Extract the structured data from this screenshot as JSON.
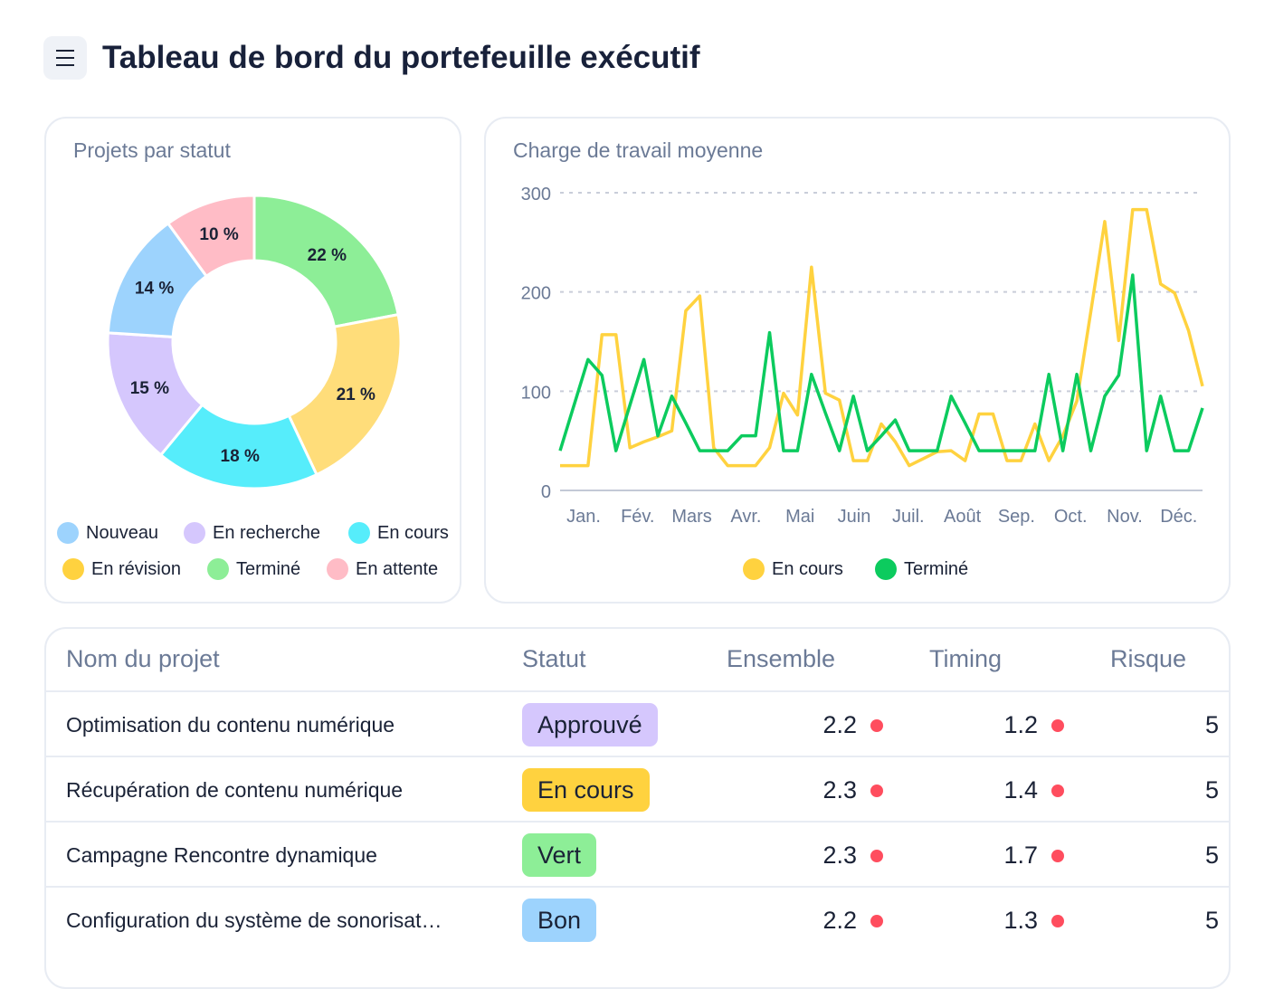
{
  "header": {
    "title": "Tableau de bord du portefeuille exécutif",
    "menu_icon": "hamburger-icon"
  },
  "status_card": {
    "title": "Projets par statut",
    "chart_data": {
      "type": "pie",
      "donut": true,
      "slices": [
        {
          "label": "Terminé",
          "value": 22,
          "display": "22 %",
          "color": "#8DEE97"
        },
        {
          "label": "En révision",
          "value": 21,
          "display": "21 %",
          "color": "#FFDD7A"
        },
        {
          "label": "En cours",
          "value": 18,
          "display": "18 %",
          "color": "#56EDFB"
        },
        {
          "label": "En recherche",
          "value": 15,
          "display": "15 %",
          "color": "#D5C7FD"
        },
        {
          "label": "Nouveau",
          "value": 14,
          "display": "14 %",
          "color": "#9DD3FD"
        },
        {
          "label": "En attente",
          "value": 10,
          "display": "10 %",
          "color": "#FFBCC6"
        }
      ]
    },
    "legend": [
      {
        "label": "Nouveau",
        "color": "#9DD3FD"
      },
      {
        "label": "En recherche",
        "color": "#D5C7FD"
      },
      {
        "label": "En cours",
        "color": "#56EDFB"
      },
      {
        "label": "En révision",
        "color": "#FFD23F"
      },
      {
        "label": "Terminé",
        "color": "#8DEE97"
      },
      {
        "label": "En attente",
        "color": "#FFBCC6"
      }
    ]
  },
  "workload_card": {
    "title": "Charge de travail moyenne",
    "chart_data": {
      "type": "line",
      "ylim": [
        0,
        300
      ],
      "yticks": [
        "0",
        "100",
        "200",
        "300"
      ],
      "xticks": [
        "Jan.",
        "Fév.",
        "Mars",
        "Avr.",
        "Mai",
        "Juin",
        "Juil.",
        "Août",
        "Sep.",
        "Oct.",
        "Nov.",
        "Déc."
      ],
      "grid": true,
      "legend_position": "bottom",
      "series": [
        {
          "name": "En cours",
          "color": "#FFD23F",
          "values": [
            25,
            25,
            25,
            157,
            157,
            43,
            49,
            54,
            60,
            181,
            196,
            43,
            25,
            25,
            25,
            43,
            98,
            76,
            225,
            98,
            91,
            30,
            30,
            67,
            49,
            25,
            32,
            39,
            40,
            30,
            77,
            77,
            30,
            30,
            67,
            30,
            55,
            90,
            180,
            271,
            151,
            283,
            283,
            208,
            199,
            161,
            105
          ]
        },
        {
          "name": "Terminé",
          "color": "#0CCB5E",
          "values": [
            40,
            86,
            132,
            116,
            40,
            86,
            132,
            55,
            95,
            68,
            40,
            40,
            40,
            55,
            55,
            159,
            40,
            40,
            117,
            78,
            40,
            95,
            40,
            55,
            71,
            40,
            40,
            40,
            95,
            68,
            40,
            40,
            40,
            40,
            40,
            117,
            40,
            117,
            40,
            95,
            116,
            217,
            40,
            95,
            40,
            40,
            83
          ]
        }
      ]
    }
  },
  "table": {
    "headers": [
      "Nom du projet",
      "Statut",
      "Ensemble",
      "Timing",
      "Risque"
    ],
    "rows": [
      {
        "name": "Optimisation du contenu numérique",
        "status": "Approuvé",
        "status_color": "#D5C7FD",
        "overall": "2.2",
        "timing": "1.2",
        "risk": "5"
      },
      {
        "name": "Récupération de contenu numérique",
        "status": "En cours",
        "status_color": "#FFD23F",
        "overall": "2.3",
        "timing": "1.4",
        "risk": "5"
      },
      {
        "name": "Campagne Rencontre dynamique",
        "status": "Vert",
        "status_color": "#8DEE97",
        "overall": "2.3",
        "timing": "1.7",
        "risk": "5"
      },
      {
        "name": "Configuration du système de sonorisat…",
        "status": "Bon",
        "status_color": "#9DD3FD",
        "overall": "2.2",
        "timing": "1.3",
        "risk": "5"
      }
    ],
    "indicator_color": "#FF4D5E"
  }
}
